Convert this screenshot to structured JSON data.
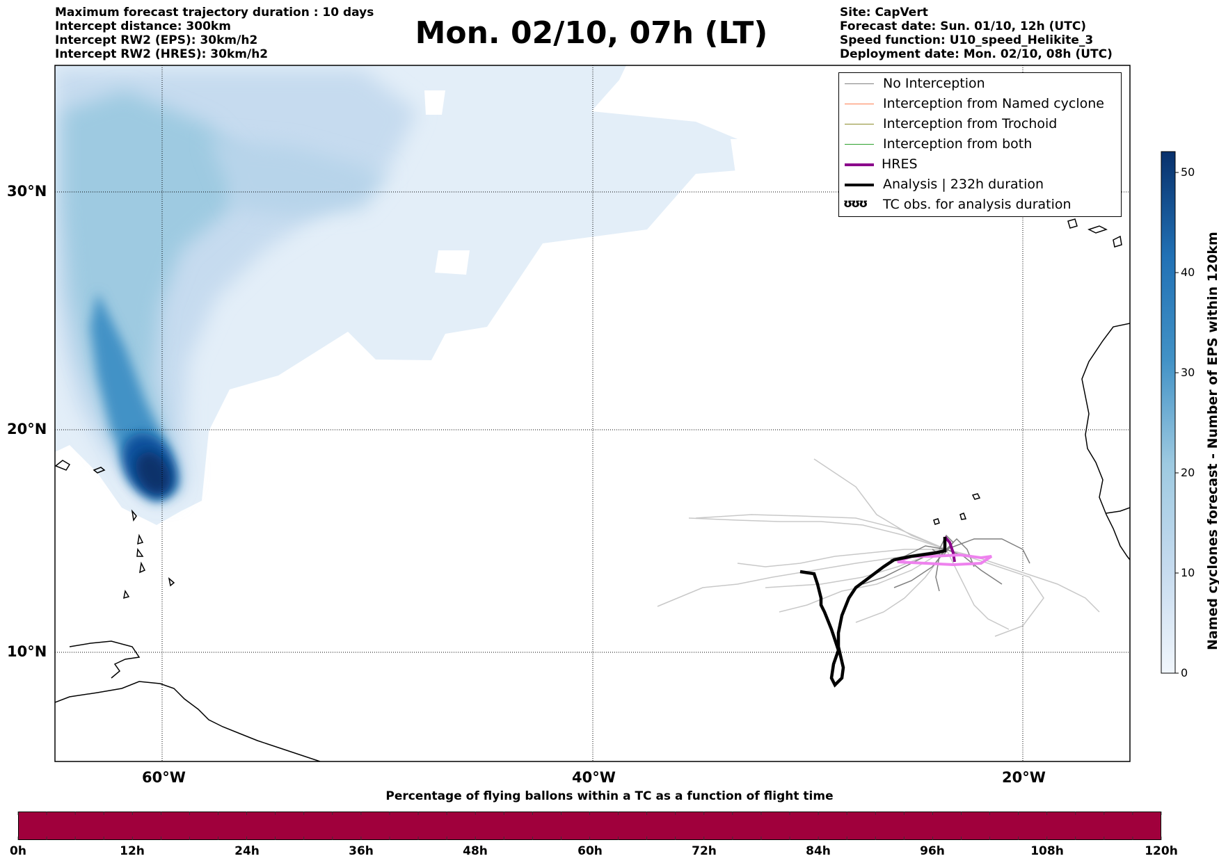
{
  "header": {
    "left_lines": [
      "Maximum forecast trajectory duration : 10 days",
      "Intercept distance: 300km",
      "Intercept RW2 (EPS):  30km/h2",
      "Intercept RW2 (HRES): 30km/h2"
    ],
    "title": "Mon. 02/10, 07h (LT)",
    "right_lines": [
      "Site: CapVert",
      "Forecast date: Sun. 01/10, 12h (UTC)",
      "Speed function: U10_speed_Helikite_3",
      "Deployment date: Mon. 02/10, 08h (UTC)"
    ]
  },
  "map": {
    "lat_labels": [
      "30°N",
      "20°N",
      "10°N"
    ],
    "lon_labels": [
      "60°W",
      "40°W",
      "20°W"
    ]
  },
  "legend": {
    "items": [
      {
        "label": "No Interception",
        "color": "#7f7f7f"
      },
      {
        "label": "Interception from Named cyclone",
        "color": "#ff7f50"
      },
      {
        "label": "Interception from Trochoid",
        "color": "#8b8b2a"
      },
      {
        "label": "Interception from both",
        "color": "#2ca02c"
      },
      {
        "label": "HRES",
        "color": "#8b008b"
      },
      {
        "label": "Analysis | 232h duration",
        "color": "#000000"
      },
      {
        "label": "TC obs. for analysis duration",
        "icon": "cyclone-icon",
        "glyph": "ʊʊʊ"
      }
    ]
  },
  "colorbar": {
    "title": "Named cyclones forecast - Number of EPS within 120km",
    "ticks": [
      "0",
      "10",
      "20",
      "30",
      "40",
      "50"
    ],
    "cmap": [
      "#f1f6fc",
      "#08306b"
    ]
  },
  "flight_bar": {
    "title": "Percentage of flying ballons within a TC as a function of flight time",
    "ticks": [
      "0h",
      "12h",
      "24h",
      "36h",
      "48h",
      "60h",
      "72h",
      "84h",
      "96h",
      "108h",
      "120h"
    ],
    "color": "#a0003c"
  }
}
